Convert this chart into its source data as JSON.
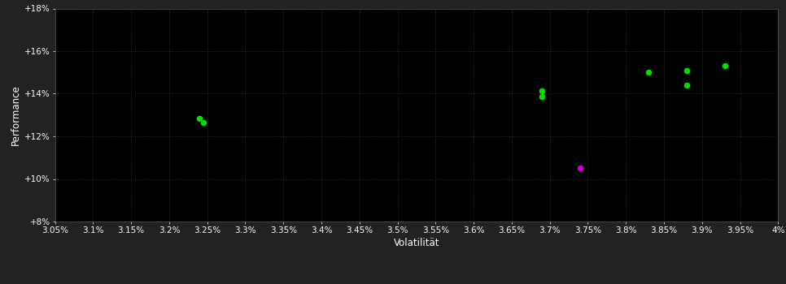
{
  "background_color": "#222222",
  "plot_bg_color": "#000000",
  "grid_color": "#3a3a3a",
  "text_color": "#ffffff",
  "xlabel": "Volatilität",
  "ylabel": "Performance",
  "xlim": [
    0.0305,
    0.04
  ],
  "ylim": [
    0.08,
    0.18
  ],
  "xticks": [
    0.0305,
    0.031,
    0.0315,
    0.032,
    0.0325,
    0.033,
    0.0335,
    0.034,
    0.0345,
    0.035,
    0.0355,
    0.036,
    0.0365,
    0.037,
    0.0375,
    0.038,
    0.0385,
    0.039,
    0.0395,
    0.04
  ],
  "xtick_labels": [
    "3.05%",
    "3.1%",
    "3.15%",
    "3.2%",
    "3.25%",
    "3.3%",
    "3.35%",
    "3.4%",
    "3.45%",
    "3.5%",
    "3.55%",
    "3.6%",
    "3.65%",
    "3.7%",
    "3.75%",
    "3.8%",
    "3.85%",
    "3.9%",
    "3.95%",
    "4%"
  ],
  "yticks": [
    0.08,
    0.1,
    0.12,
    0.14,
    0.16,
    0.18
  ],
  "ytick_labels": [
    "+8%",
    "+10%",
    "+12%",
    "+14%",
    "+16%",
    "+18%"
  ],
  "green_points": [
    [
      0.0324,
      0.1285
    ],
    [
      0.03245,
      0.1265
    ],
    [
      0.0369,
      0.1415
    ],
    [
      0.0369,
      0.1385
    ],
    [
      0.0383,
      0.15
    ],
    [
      0.0388,
      0.151
    ],
    [
      0.0388,
      0.144
    ],
    [
      0.0393,
      0.153
    ]
  ],
  "magenta_points": [
    [
      0.0374,
      0.105
    ]
  ],
  "dot_color_green": "#00dd00",
  "dot_color_magenta": "#cc00cc",
  "dot_size": 30,
  "label_fontsize": 8.5,
  "tick_fontsize": 7.5
}
